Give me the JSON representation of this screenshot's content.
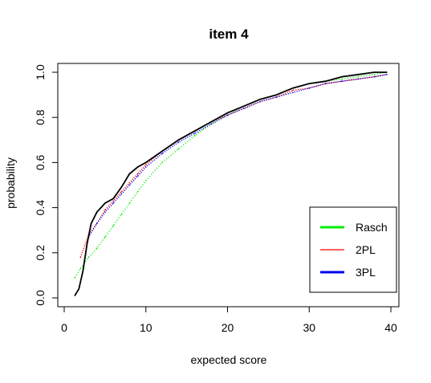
{
  "chart_data": {
    "type": "line",
    "title": "item 4",
    "xlabel": "expected score",
    "ylabel": "probability",
    "xlim": [
      0,
      40
    ],
    "ylim": [
      0,
      1
    ],
    "x_ticks": [
      "0",
      "10",
      "20",
      "30",
      "40"
    ],
    "y_ticks": [
      "0.0",
      "0.2",
      "0.4",
      "0.6",
      "0.8",
      "1.0"
    ],
    "grid": false,
    "legend_position": "bottom-right",
    "legend": [
      {
        "label": "Rasch",
        "color": "#00ee00"
      },
      {
        "label": "2PL",
        "color": "#ff0000"
      },
      {
        "label": "3PL",
        "color": "#0000ee"
      }
    ],
    "observed_curve": {
      "color": "#000000",
      "points": [
        [
          1.3,
          0.01
        ],
        [
          1.8,
          0.04
        ],
        [
          2.3,
          0.12
        ],
        [
          2.8,
          0.24
        ],
        [
          3.3,
          0.33
        ],
        [
          4.0,
          0.38
        ],
        [
          5.0,
          0.42
        ],
        [
          6.0,
          0.44
        ],
        [
          7.0,
          0.49
        ],
        [
          8.0,
          0.55
        ],
        [
          9.0,
          0.58
        ],
        [
          10.0,
          0.6
        ],
        [
          12.0,
          0.65
        ],
        [
          14.0,
          0.7
        ],
        [
          16.0,
          0.74
        ],
        [
          18.0,
          0.78
        ],
        [
          20.0,
          0.82
        ],
        [
          22.0,
          0.85
        ],
        [
          24.0,
          0.88
        ],
        [
          26.0,
          0.9
        ],
        [
          28.0,
          0.93
        ],
        [
          30.0,
          0.95
        ],
        [
          32.0,
          0.96
        ],
        [
          34.0,
          0.98
        ],
        [
          36.0,
          0.99
        ],
        [
          38.0,
          1.0
        ],
        [
          39.5,
          1.0
        ]
      ]
    },
    "series": [
      {
        "name": "Rasch",
        "color": "#00ee00",
        "points": [
          [
            1.3,
            0.09
          ],
          [
            2.0,
            0.13
          ],
          [
            3.0,
            0.18
          ],
          [
            4.0,
            0.22
          ],
          [
            5.0,
            0.27
          ],
          [
            6.0,
            0.32
          ],
          [
            7.0,
            0.37
          ],
          [
            8.0,
            0.42
          ],
          [
            9.0,
            0.47
          ],
          [
            10.0,
            0.52
          ],
          [
            12.0,
            0.6
          ],
          [
            14.0,
            0.66
          ],
          [
            16.0,
            0.72
          ],
          [
            18.0,
            0.77
          ],
          [
            20.0,
            0.81
          ],
          [
            22.0,
            0.85
          ],
          [
            24.0,
            0.88
          ],
          [
            26.0,
            0.9
          ],
          [
            28.0,
            0.93
          ],
          [
            30.0,
            0.95
          ],
          [
            32.0,
            0.96
          ],
          [
            34.0,
            0.97
          ],
          [
            36.0,
            0.98
          ],
          [
            38.0,
            0.99
          ],
          [
            39.5,
            1.0
          ]
        ]
      },
      {
        "name": "2PL",
        "color": "#ff0000",
        "points": [
          [
            2.0,
            0.18
          ],
          [
            3.0,
            0.28
          ],
          [
            4.0,
            0.33
          ],
          [
            5.0,
            0.39
          ],
          [
            6.0,
            0.43
          ],
          [
            7.0,
            0.47
          ],
          [
            8.0,
            0.51
          ],
          [
            9.0,
            0.55
          ],
          [
            10.0,
            0.59
          ],
          [
            12.0,
            0.65
          ],
          [
            14.0,
            0.7
          ],
          [
            16.0,
            0.74
          ],
          [
            18.0,
            0.78
          ],
          [
            20.0,
            0.81
          ],
          [
            22.0,
            0.84
          ],
          [
            24.0,
            0.87
          ],
          [
            26.0,
            0.89
          ],
          [
            28.0,
            0.92
          ],
          [
            30.0,
            0.93
          ],
          [
            32.0,
            0.95
          ],
          [
            34.0,
            0.96
          ],
          [
            36.0,
            0.97
          ],
          [
            38.0,
            0.98
          ],
          [
            39.5,
            0.99
          ]
        ]
      },
      {
        "name": "3PL",
        "color": "#0000ee",
        "points": [
          [
            3.0,
            0.27
          ],
          [
            4.0,
            0.33
          ],
          [
            5.0,
            0.38
          ],
          [
            6.0,
            0.42
          ],
          [
            7.0,
            0.46
          ],
          [
            8.0,
            0.5
          ],
          [
            9.0,
            0.54
          ],
          [
            10.0,
            0.58
          ],
          [
            12.0,
            0.64
          ],
          [
            14.0,
            0.69
          ],
          [
            16.0,
            0.73
          ],
          [
            18.0,
            0.77
          ],
          [
            20.0,
            0.81
          ],
          [
            22.0,
            0.84
          ],
          [
            24.0,
            0.87
          ],
          [
            26.0,
            0.89
          ],
          [
            28.0,
            0.91
          ],
          [
            30.0,
            0.93
          ],
          [
            32.0,
            0.95
          ],
          [
            34.0,
            0.96
          ],
          [
            36.0,
            0.97
          ],
          [
            38.0,
            0.98
          ],
          [
            39.5,
            0.99
          ]
        ]
      }
    ]
  }
}
